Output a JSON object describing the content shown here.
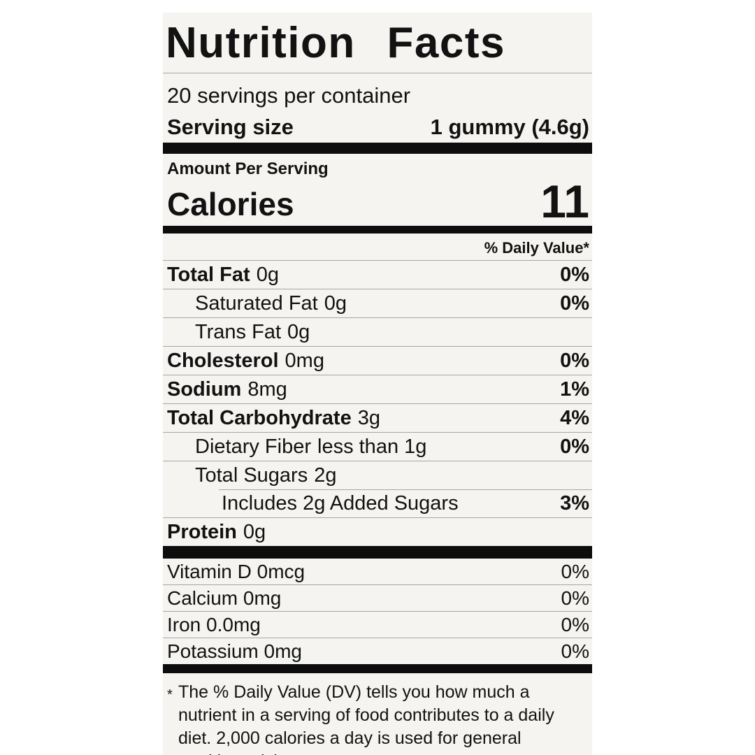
{
  "label": {
    "title": "Nutrition Facts",
    "servings_per_container": "20 servings per container",
    "serving_size_label": "Serving size",
    "serving_size_value": "1 gummy (4.6g)",
    "amount_per_serving": "Amount Per Serving",
    "calories_label": "Calories",
    "calories_value": "11",
    "daily_value_header": "% Daily Value*",
    "nutrients": [
      {
        "name": "Total Fat",
        "amount": "0g",
        "dv": "0%"
      },
      {
        "name": "Saturated Fat",
        "amount": "0g",
        "dv": "0%"
      },
      {
        "name": "Trans Fat",
        "amount": "0g",
        "dv": ""
      },
      {
        "name": "Cholesterol",
        "amount": "0mg",
        "dv": "0%"
      },
      {
        "name": "Sodium",
        "amount": "8mg",
        "dv": "1%"
      },
      {
        "name": "Total Carbohydrate",
        "amount": "3g",
        "dv": "4%"
      },
      {
        "name": "Dietary Fiber",
        "amount": "less than 1g",
        "dv": "0%"
      },
      {
        "name": "Total Sugars",
        "amount": "2g",
        "dv": ""
      },
      {
        "name": "Includes 2g Added Sugars",
        "amount": "",
        "dv": "3%"
      },
      {
        "name": "Protein",
        "amount": "0g",
        "dv": ""
      }
    ],
    "micronutrients": [
      {
        "name": "Vitamin D 0mcg",
        "dv": "0%"
      },
      {
        "name": "Calcium 0mg",
        "dv": "0%"
      },
      {
        "name": "Iron 0.0mg",
        "dv": "0%"
      },
      {
        "name": "Potassium 0mg",
        "dv": "0%"
      }
    ],
    "footnote_marker": "*",
    "footnote": "The % Daily Value (DV) tells you how much a nutrient in a serving of food contributes to a daily diet. 2,000 calories a day is used for general nutrition advice."
  },
  "colors": {
    "label_background": "#f6f4f1",
    "page_background": "#ffffff",
    "text": "#121212",
    "thick_bar": "#0d0d0d",
    "hairline": "#a6a6a6"
  }
}
